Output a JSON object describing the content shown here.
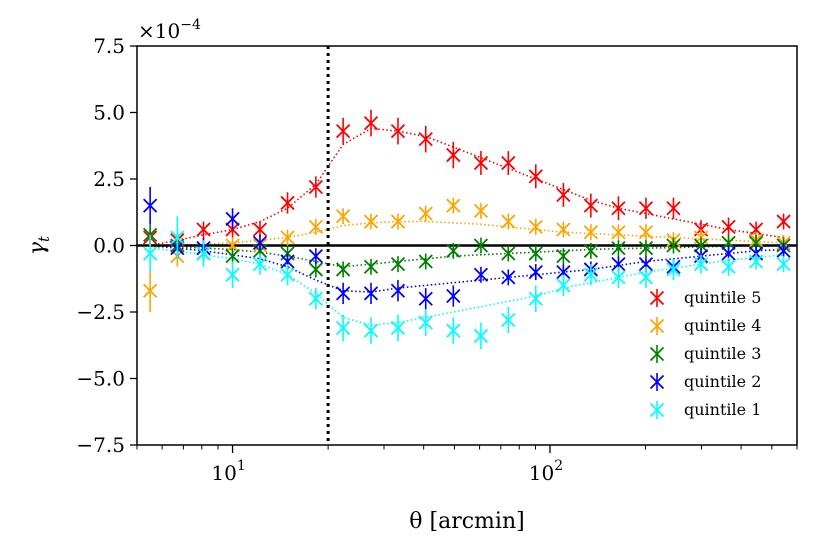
{
  "chart_data": {
    "type": "scatter",
    "title": "",
    "xlabel": "θ [arcmin]",
    "ylabel": "γ_t",
    "ylabel_main": "γ",
    "ylabel_sub": "t",
    "xscale": "log",
    "xlim": [
      5.0,
      600.0
    ],
    "ylim": [
      -7.5,
      7.5
    ],
    "y_scale_factor": "×10^-4",
    "y_scale_prefix": "×10",
    "y_scale_exponent": "−4",
    "y_ticks": [
      7.5,
      5.0,
      2.5,
      0.0,
      -2.5,
      -5.0,
      -7.5
    ],
    "y_tick_labels": [
      "7.5",
      "5.0",
      "2.5",
      "0.0",
      "−2.5",
      "−5.0",
      "−7.5"
    ],
    "x_ticks": [
      10,
      100
    ],
    "x_tick_base": "10",
    "x_tick_exponents": [
      "1",
      "2"
    ],
    "vline_x": 20,
    "hline_y": 0,
    "x": [
      5.5,
      6.7,
      8.1,
      10.0,
      12.2,
      14.9,
      18.3,
      22.3,
      27.3,
      33.2,
      40.6,
      49.6,
      60.6,
      73.9,
      90.2,
      110.2,
      134.5,
      164.3,
      200.6,
      244.9,
      299.1,
      365.2,
      445.9,
      544.4
    ],
    "legend_position": "lower-right",
    "series": [
      {
        "name": "quintile 5",
        "color": "#ff0000",
        "values": [
          0.3,
          0.2,
          0.6,
          0.6,
          0.6,
          1.6,
          2.2,
          4.3,
          4.6,
          4.3,
          4.0,
          3.4,
          3.1,
          3.1,
          2.6,
          1.9,
          1.5,
          1.4,
          1.4,
          1.4,
          0.6,
          0.7,
          0.6,
          0.9
        ],
        "errors": [
          0.3,
          0.3,
          0.3,
          0.3,
          0.3,
          0.4,
          0.4,
          0.5,
          0.5,
          0.5,
          0.5,
          0.5,
          0.45,
          0.45,
          0.45,
          0.45,
          0.45,
          0.45,
          0.4,
          0.4,
          0.35,
          0.35,
          0.3,
          0.3
        ],
        "model": [
          0.0,
          0.2,
          0.4,
          0.6,
          0.9,
          1.4,
          2.3,
          3.8,
          4.4,
          4.3,
          4.1,
          3.7,
          3.3,
          2.9,
          2.5,
          2.1,
          1.7,
          1.4,
          1.2,
          1.0,
          0.8,
          0.6,
          0.45,
          0.3
        ]
      },
      {
        "name": "quintile 4",
        "color": "#ffa500",
        "values": [
          -1.7,
          -0.4,
          -0.1,
          0.0,
          0.0,
          0.3,
          0.7,
          1.1,
          0.9,
          0.9,
          1.2,
          1.5,
          1.3,
          0.9,
          0.7,
          0.6,
          0.5,
          0.5,
          0.5,
          0.2,
          0.3,
          0.1,
          0.2,
          0.1
        ],
        "errors": [
          0.8,
          0.4,
          0.3,
          0.3,
          0.3,
          0.3,
          0.3,
          0.3,
          0.3,
          0.3,
          0.3,
          0.3,
          0.3,
          0.3,
          0.3,
          0.3,
          0.3,
          0.3,
          0.3,
          0.3,
          0.3,
          0.3,
          0.3,
          0.3
        ],
        "model": [
          -0.1,
          0.0,
          0.05,
          0.1,
          0.2,
          0.3,
          0.5,
          0.75,
          0.85,
          0.9,
          0.9,
          0.85,
          0.8,
          0.7,
          0.6,
          0.5,
          0.45,
          0.4,
          0.35,
          0.3,
          0.25,
          0.2,
          0.15,
          0.1
        ]
      },
      {
        "name": "quintile 3",
        "color": "#008000",
        "values": [
          0.4,
          0.0,
          -0.3,
          -0.4,
          -0.2,
          -0.3,
          -0.9,
          -0.9,
          -0.8,
          -0.7,
          -0.6,
          -0.2,
          0.0,
          -0.3,
          -0.3,
          -0.4,
          -0.2,
          -0.1,
          -0.1,
          0.0,
          0.0,
          0.1,
          0.1,
          0.0
        ],
        "errors": [
          0.4,
          0.4,
          0.3,
          0.3,
          0.3,
          0.3,
          0.3,
          0.3,
          0.3,
          0.3,
          0.3,
          0.3,
          0.3,
          0.3,
          0.3,
          0.3,
          0.3,
          0.3,
          0.3,
          0.3,
          0.3,
          0.3,
          0.3,
          0.3
        ],
        "model": [
          0.0,
          -0.05,
          -0.1,
          -0.15,
          -0.25,
          -0.4,
          -0.6,
          -0.8,
          -0.7,
          -0.6,
          -0.5,
          -0.4,
          -0.35,
          -0.3,
          -0.25,
          -0.2,
          -0.15,
          -0.12,
          -0.1,
          -0.08,
          -0.05,
          -0.03,
          -0.02,
          -0.01
        ]
      },
      {
        "name": "quintile 2",
        "color": "#0000ff",
        "values": [
          1.5,
          -0.1,
          -0.1,
          1.0,
          0.1,
          -0.6,
          -0.4,
          -1.8,
          -1.8,
          -1.7,
          -2.0,
          -1.9,
          -1.1,
          -1.2,
          -1.0,
          -1.0,
          -0.9,
          -0.7,
          -0.7,
          -0.8,
          -0.4,
          -0.3,
          -0.3,
          -0.2
        ],
        "errors": [
          0.7,
          0.4,
          0.4,
          0.4,
          0.3,
          0.3,
          0.3,
          0.4,
          0.4,
          0.4,
          0.4,
          0.4,
          0.3,
          0.3,
          0.3,
          0.3,
          0.3,
          0.3,
          0.3,
          0.3,
          0.3,
          0.3,
          0.3,
          0.3
        ],
        "model": [
          0.0,
          -0.1,
          -0.2,
          -0.35,
          -0.5,
          -0.8,
          -1.3,
          -1.7,
          -1.75,
          -1.6,
          -1.5,
          -1.4,
          -1.3,
          -1.2,
          -1.1,
          -1.0,
          -0.9,
          -0.75,
          -0.6,
          -0.5,
          -0.4,
          -0.3,
          -0.2,
          -0.15
        ]
      },
      {
        "name": "quintile 1",
        "color": "#00ffff",
        "values": [
          -0.3,
          0.3,
          -0.3,
          -1.1,
          -0.7,
          -1.1,
          -2.0,
          -3.1,
          -3.2,
          -3.1,
          -2.9,
          -3.2,
          -3.4,
          -2.8,
          -2.0,
          -1.5,
          -1.1,
          -1.2,
          -1.2,
          -0.9,
          -0.7,
          -0.8,
          -0.6,
          -0.7
        ],
        "errors": [
          0.7,
          0.8,
          0.5,
          0.5,
          0.4,
          0.4,
          0.4,
          0.5,
          0.5,
          0.5,
          0.5,
          0.5,
          0.5,
          0.5,
          0.5,
          0.4,
          0.4,
          0.4,
          0.4,
          0.4,
          0.35,
          0.35,
          0.3,
          0.3
        ],
        "model": [
          -0.1,
          -0.2,
          -0.35,
          -0.5,
          -0.7,
          -1.1,
          -1.8,
          -2.7,
          -3.0,
          -2.9,
          -2.7,
          -2.5,
          -2.3,
          -2.1,
          -1.9,
          -1.6,
          -1.4,
          -1.2,
          -1.0,
          -0.85,
          -0.7,
          -0.55,
          -0.45,
          -0.35
        ]
      }
    ]
  }
}
